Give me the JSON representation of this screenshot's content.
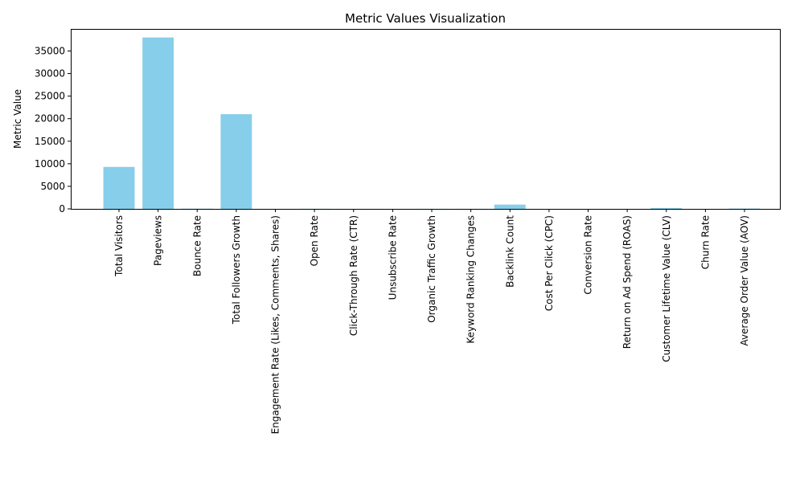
{
  "chart_data": {
    "type": "bar",
    "title": "Metric Values Visualization",
    "xlabel": "",
    "ylabel": "Metric Value",
    "ylim": [
      0,
      39900
    ],
    "yticks": [
      0,
      5000,
      10000,
      15000,
      20000,
      25000,
      30000,
      35000
    ],
    "grid": false,
    "bar_color": "#87CEEB",
    "categories": [
      "Total Visitors",
      "Pageviews",
      "Bounce Rate",
      "Total Followers Growth",
      "Engagement Rate (Likes, Comments, Shares)",
      "Open Rate",
      "Click-Through Rate (CTR)",
      "Unsubscribe Rate",
      "Organic Traffic Growth",
      "Keyword Ranking Changes",
      "Backlink Count",
      "Cost Per Click (CPC)",
      "Conversion Rate",
      "Return on Ad Spend (ROAS)",
      "Customer Lifetime Value (CLV)",
      "Churn Rate",
      "Average Order Value (AOV)"
    ],
    "values": [
      9300,
      38000,
      45,
      21000,
      5,
      22,
      3,
      0.5,
      15,
      10,
      950,
      1.5,
      3,
      4,
      200,
      2,
      75
    ]
  }
}
